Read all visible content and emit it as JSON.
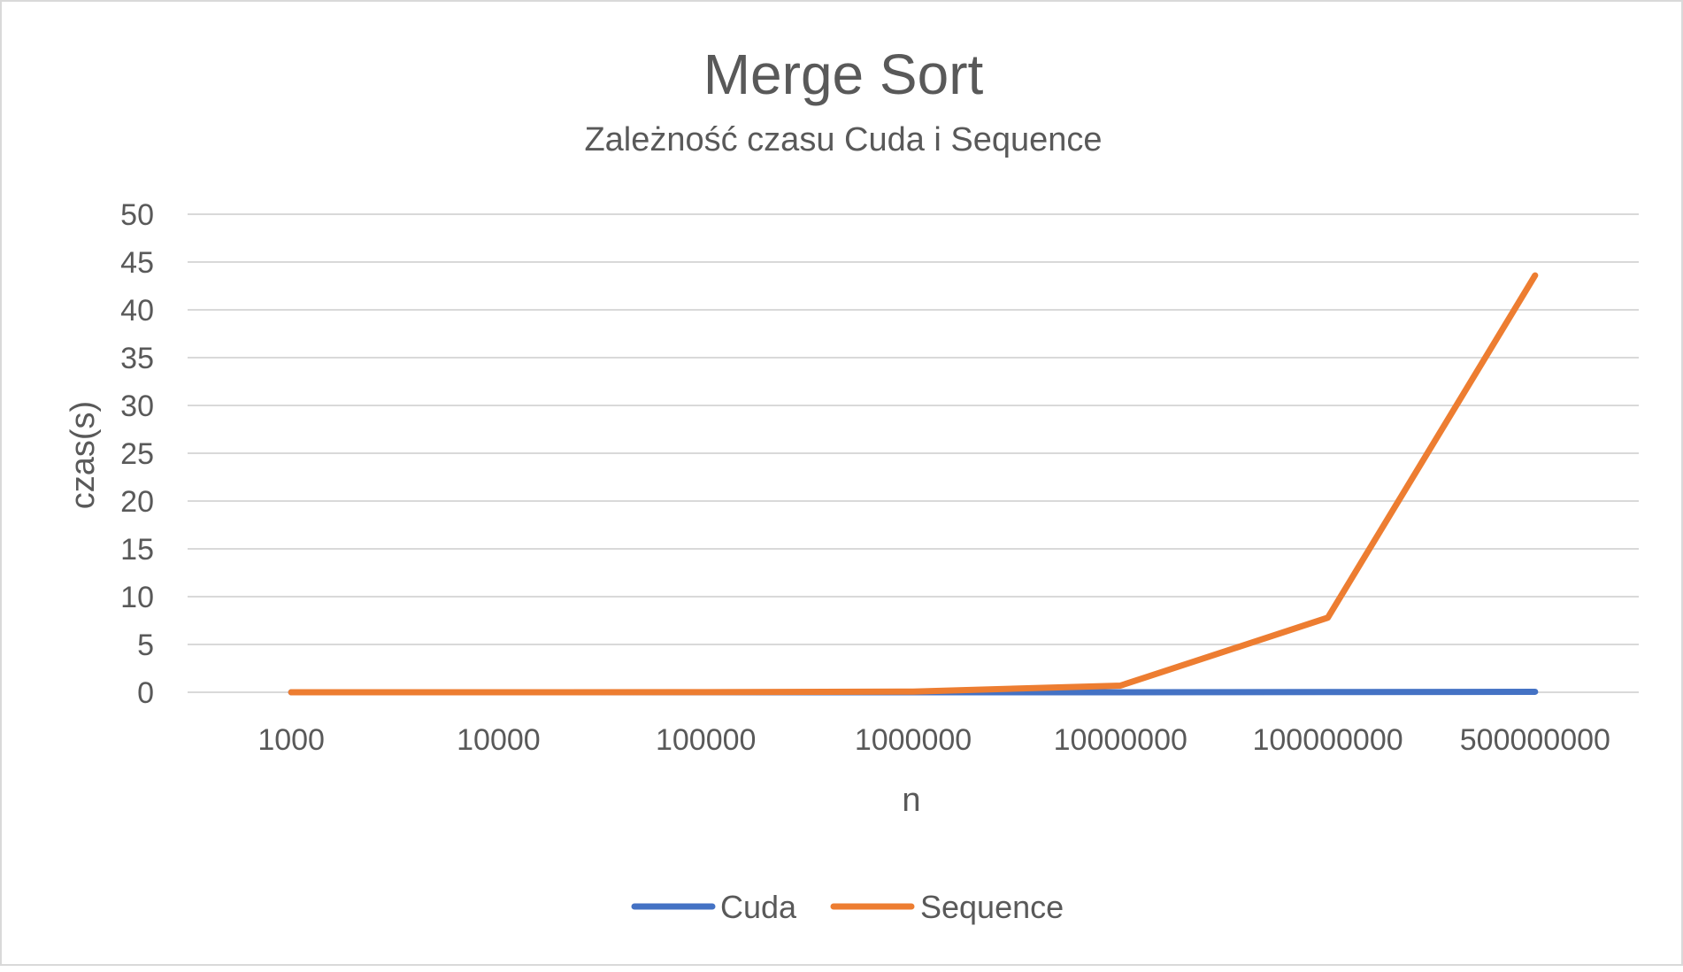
{
  "chart_data": {
    "type": "line",
    "title": "Merge Sort",
    "subtitle": "Zależność czasu Cuda i Sequence",
    "xlabel": "n",
    "ylabel": "czas(s)",
    "categories": [
      "1000",
      "10000",
      "100000",
      "1000000",
      "10000000",
      "100000000",
      "500000000"
    ],
    "ylim": [
      0,
      50
    ],
    "yticks": [
      "0",
      "5",
      "10",
      "15",
      "20",
      "25",
      "30",
      "35",
      "40",
      "45",
      "50"
    ],
    "grid": true,
    "legend_position": "bottom",
    "series": [
      {
        "name": "Cuda",
        "color": "#4472C4",
        "values": [
          0,
          0,
          0,
          0,
          0,
          0.02,
          0.05
        ]
      },
      {
        "name": "Sequence",
        "color": "#ED7D31",
        "values": [
          0,
          0,
          0.01,
          0.07,
          0.7,
          7.8,
          43.6
        ]
      }
    ]
  }
}
